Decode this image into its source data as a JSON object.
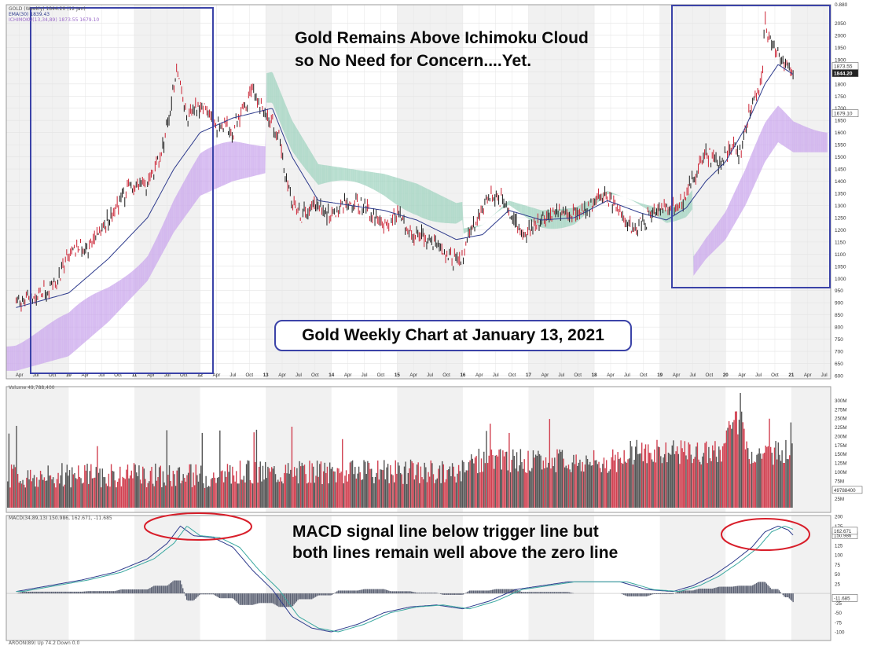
{
  "annotations": {
    "top_line1": "Gold Remains Above Ichimoku Cloud",
    "top_line2": "so No Need for Concern....Yet.",
    "title_box": "Gold Weekly Chart at January 13, 2021",
    "macd_line1": "MACD signal line below trigger line but",
    "macd_line2": "both lines remain well above the zero line"
  },
  "legends": {
    "price_line1": "GOLD (Weekly) 1844.20 (12 Jan)",
    "price_line2": "EMA(30) 1839.43",
    "price_line3": "ICHIMOKU(13,34,89) 1873.55 1679.10",
    "volume": "Volume 49,788,400",
    "macd": "MACD(34,89,13) 150.986, 162.671, -11.685",
    "aroon": "AROON(89) Up 74.2 Down 0.0"
  },
  "colors": {
    "up": "#1a1a1a",
    "down": "#cc2233",
    "ema": "#2d3a8c",
    "cloud_bull": "#c9a6ec",
    "cloud_bear": "#9fd3bf",
    "vol_up": "#555555",
    "vol_down": "#d14050",
    "macd": "#2d3a8c",
    "signal": "#3aa8a0",
    "box": "#3b43a8",
    "ellipse": "#d81e2a"
  },
  "chart_data": {
    "type": "line",
    "title": "Gold Weekly Chart at January 13, 2021",
    "x_axis_ticks": [
      "Apr",
      "Jul",
      "Oct",
      "10",
      "Apr",
      "Jul",
      "Oct",
      "11",
      "Apr",
      "Jul",
      "Oct",
      "12",
      "Apr",
      "Jul",
      "Oct",
      "13",
      "Apr",
      "Jul",
      "Oct",
      "14",
      "Apr",
      "Jul",
      "Oct",
      "15",
      "Apr",
      "Jul",
      "Oct",
      "16",
      "Apr",
      "Jul",
      "Oct",
      "17",
      "Apr",
      "Jul",
      "Oct",
      "18",
      "Apr",
      "Jul",
      "Oct",
      "19",
      "Apr",
      "Jul",
      "Oct",
      "20",
      "Apr",
      "Jul",
      "Oct",
      "21",
      "Apr",
      "Jul"
    ],
    "price_panel": {
      "ylim": [
        600,
        2100
      ],
      "y_ticks": [
        600,
        650,
        700,
        750,
        800,
        850,
        900,
        950,
        1000,
        1050,
        1100,
        1150,
        1200,
        1250,
        1300,
        1350,
        1400,
        1450,
        1500,
        1550,
        1600,
        1650,
        1700,
        1750,
        1800,
        1850,
        1900,
        1950,
        2000,
        2050
      ],
      "last_price": 1844.2,
      "ema30": 1839.43,
      "cloud_span_a": 1873.55,
      "cloud_span_b": 1679.1,
      "axis_top_label": "0.880",
      "series": [
        {
          "name": "GOLD (Weekly)",
          "x": [
            2009.2,
            2009.5,
            2009.8,
            2010.0,
            2010.3,
            2010.6,
            2010.9,
            2011.2,
            2011.4,
            2011.55,
            2011.65,
            2011.8,
            2012.0,
            2012.2,
            2012.5,
            2012.8,
            2013.0,
            2013.2,
            2013.3,
            2013.5,
            2013.8,
            2014.0,
            2014.2,
            2014.5,
            2014.8,
            2015.0,
            2015.2,
            2015.5,
            2015.8,
            2015.95,
            2016.2,
            2016.4,
            2016.6,
            2016.9,
            2017.0,
            2017.3,
            2017.6,
            2017.9,
            2018.1,
            2018.3,
            2018.6,
            2018.8,
            2019.0,
            2019.3,
            2019.5,
            2019.7,
            2019.9,
            2020.1,
            2020.2,
            2020.4,
            2020.55,
            2020.6,
            2020.8,
            2020.95,
            2021.03
          ],
          "values": [
            900,
            920,
            970,
            1110,
            1130,
            1240,
            1370,
            1380,
            1500,
            1700,
            1880,
            1650,
            1720,
            1640,
            1610,
            1770,
            1680,
            1580,
            1400,
            1260,
            1300,
            1250,
            1320,
            1300,
            1200,
            1270,
            1200,
            1150,
            1100,
            1060,
            1240,
            1350,
            1320,
            1180,
            1200,
            1250,
            1270,
            1280,
            1340,
            1310,
            1200,
            1240,
            1290,
            1290,
            1420,
            1510,
            1470,
            1560,
            1500,
            1720,
            1800,
            2060,
            1900,
            1880,
            1844
          ]
        },
        {
          "name": "EMA(30)",
          "x": [
            2009.2,
            2010.0,
            2010.6,
            2011.2,
            2011.6,
            2012.0,
            2012.5,
            2012.8,
            2013.1,
            2013.4,
            2013.8,
            2014.3,
            2014.8,
            2015.3,
            2015.9,
            2016.3,
            2016.7,
            2017.2,
            2017.7,
            2018.2,
            2018.7,
            2019.1,
            2019.4,
            2019.7,
            2020.0,
            2020.3,
            2020.6,
            2020.8,
            2021.03
          ],
          "values": [
            880,
            940,
            1080,
            1250,
            1450,
            1600,
            1660,
            1680,
            1700,
            1500,
            1320,
            1300,
            1280,
            1240,
            1160,
            1180,
            1280,
            1240,
            1250,
            1320,
            1270,
            1240,
            1290,
            1400,
            1480,
            1620,
            1800,
            1880,
            1839
          ]
        }
      ]
    },
    "volume_panel": {
      "ylim": [
        0,
        325
      ],
      "y_unit": "M",
      "y_ticks": [
        "25M",
        "50M",
        "75M",
        "100M",
        "125M",
        "150M",
        "175M",
        "200M",
        "225M",
        "250M",
        "275M",
        "300M"
      ],
      "last_volume": "49788400",
      "last_label": "49788400"
    },
    "macd_panel": {
      "ylim": [
        -110,
        190
      ],
      "y_ticks": [
        -100,
        -75,
        -50,
        -25,
        25,
        50,
        75,
        100,
        125,
        150,
        175,
        200
      ],
      "macd": 150.986,
      "signal": 162.671,
      "histogram": -11.685,
      "series": [
        {
          "name": "MACD(34,89,13)",
          "x": [
            2009.2,
            2009.7,
            2010.2,
            2010.7,
            2011.2,
            2011.5,
            2011.7,
            2011.9,
            2012.2,
            2012.5,
            2012.8,
            2013.1,
            2013.4,
            2013.7,
            2014.0,
            2014.4,
            2014.8,
            2015.2,
            2015.6,
            2016.0,
            2016.4,
            2016.8,
            2017.2,
            2017.6,
            2018.0,
            2018.4,
            2018.8,
            2019.2,
            2019.5,
            2019.8,
            2020.1,
            2020.4,
            2020.6,
            2020.8,
            2020.95,
            2021.03
          ],
          "values": [
            5,
            20,
            35,
            55,
            90,
            130,
            175,
            150,
            145,
            120,
            60,
            10,
            -60,
            -90,
            -100,
            -80,
            -50,
            -35,
            -30,
            -40,
            -20,
            10,
            20,
            30,
            30,
            30,
            10,
            5,
            20,
            45,
            80,
            120,
            160,
            175,
            165,
            151
          ]
        }
      ]
    }
  }
}
